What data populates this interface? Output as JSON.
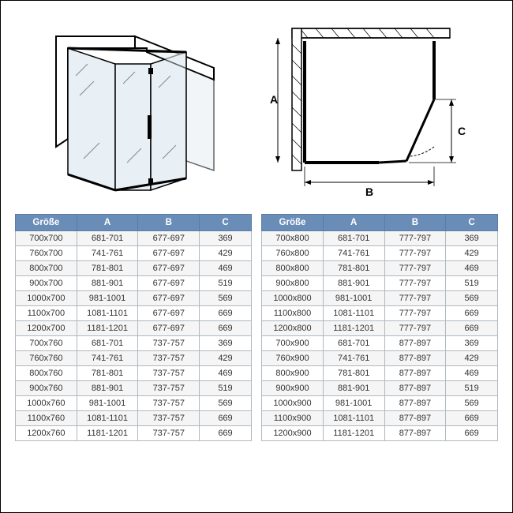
{
  "columns": [
    "Größe",
    "A",
    "B",
    "C"
  ],
  "diagram_labels": {
    "A": "A",
    "B": "B",
    "C": "C"
  },
  "style": {
    "header_bg": "#6a8db8",
    "header_text": "#ffffff",
    "row_odd_bg": "#f5f5f5",
    "row_even_bg": "#ffffff",
    "cell_border": "#b0b8c0",
    "header_border": "#5a7da8",
    "text_color": "#333333",
    "font_size_body": 11,
    "font_size_header": 11.5,
    "diagram_stroke": "#000000",
    "diagram_fill_glass": "#e8f0f5",
    "diagram_wall": "#ffffff"
  },
  "table_left": [
    [
      "700x700",
      "681-701",
      "677-697",
      "369"
    ],
    [
      "760x700",
      "741-761",
      "677-697",
      "429"
    ],
    [
      "800x700",
      "781-801",
      "677-697",
      "469"
    ],
    [
      "900x700",
      "881-901",
      "677-697",
      "519"
    ],
    [
      "1000x700",
      "981-1001",
      "677-697",
      "569"
    ],
    [
      "1100x700",
      "1081-1101",
      "677-697",
      "669"
    ],
    [
      "1200x700",
      "1181-1201",
      "677-697",
      "669"
    ],
    [
      "700x760",
      "681-701",
      "737-757",
      "369"
    ],
    [
      "760x760",
      "741-761",
      "737-757",
      "429"
    ],
    [
      "800x760",
      "781-801",
      "737-757",
      "469"
    ],
    [
      "900x760",
      "881-901",
      "737-757",
      "519"
    ],
    [
      "1000x760",
      "981-1001",
      "737-757",
      "569"
    ],
    [
      "1100x760",
      "1081-1101",
      "737-757",
      "669"
    ],
    [
      "1200x760",
      "1181-1201",
      "737-757",
      "669"
    ]
  ],
  "table_right": [
    [
      "700x800",
      "681-701",
      "777-797",
      "369"
    ],
    [
      "760x800",
      "741-761",
      "777-797",
      "429"
    ],
    [
      "800x800",
      "781-801",
      "777-797",
      "469"
    ],
    [
      "900x800",
      "881-901",
      "777-797",
      "519"
    ],
    [
      "1000x800",
      "981-1001",
      "777-797",
      "569"
    ],
    [
      "1100x800",
      "1081-1101",
      "777-797",
      "669"
    ],
    [
      "1200x800",
      "1181-1201",
      "777-797",
      "669"
    ],
    [
      "700x900",
      "681-701",
      "877-897",
      "369"
    ],
    [
      "760x900",
      "741-761",
      "877-897",
      "429"
    ],
    [
      "800x900",
      "781-801",
      "877-897",
      "469"
    ],
    [
      "900x900",
      "881-901",
      "877-897",
      "519"
    ],
    [
      "1000x900",
      "981-1001",
      "877-897",
      "569"
    ],
    [
      "1100x900",
      "1081-1101",
      "877-897",
      "669"
    ],
    [
      "1200x900",
      "1181-1201",
      "877-897",
      "669"
    ]
  ]
}
